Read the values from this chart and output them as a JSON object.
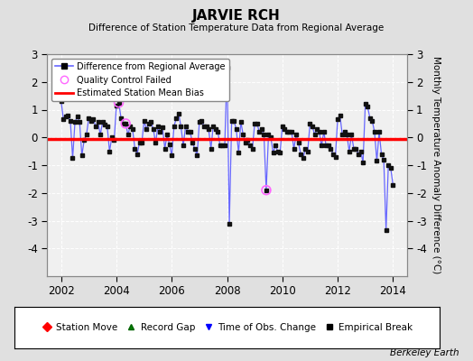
{
  "title": "JARVIE RCH",
  "subtitle": "Difference of Station Temperature Data from Regional Average",
  "ylabel": "Monthly Temperature Anomaly Difference (°C)",
  "xlabel_years": [
    2002,
    2004,
    2006,
    2008,
    2010,
    2012,
    2014
  ],
  "ylim": [
    -5,
    3
  ],
  "yticks": [
    -4,
    -3,
    -2,
    -1,
    0,
    1,
    2,
    3
  ],
  "bias_value": -0.05,
  "line_color": "#6666FF",
  "marker_color": "#111111",
  "bias_color": "#FF0000",
  "qc_color": "#FF66FF",
  "plot_bg_color": "#F0F0F0",
  "fig_bg_color": "#E0E0E0",
  "watermark": "Berkeley Earth",
  "times": [
    2002.0,
    2002.083,
    2002.167,
    2002.25,
    2002.333,
    2002.417,
    2002.5,
    2002.583,
    2002.667,
    2002.75,
    2002.833,
    2002.917,
    2003.0,
    2003.083,
    2003.167,
    2003.25,
    2003.333,
    2003.417,
    2003.5,
    2003.583,
    2003.667,
    2003.75,
    2003.833,
    2003.917,
    2004.0,
    2004.083,
    2004.167,
    2004.25,
    2004.333,
    2004.417,
    2004.5,
    2004.583,
    2004.667,
    2004.75,
    2004.833,
    2004.917,
    2005.0,
    2005.083,
    2005.167,
    2005.25,
    2005.333,
    2005.417,
    2005.5,
    2005.583,
    2005.667,
    2005.75,
    2005.833,
    2005.917,
    2006.0,
    2006.083,
    2006.167,
    2006.25,
    2006.333,
    2006.417,
    2006.5,
    2006.583,
    2006.667,
    2006.75,
    2006.833,
    2006.917,
    2007.0,
    2007.083,
    2007.167,
    2007.25,
    2007.333,
    2007.417,
    2007.5,
    2007.583,
    2007.667,
    2007.75,
    2007.833,
    2007.917,
    2008.0,
    2008.083,
    2008.167,
    2008.25,
    2008.333,
    2008.417,
    2008.5,
    2008.583,
    2008.667,
    2008.75,
    2008.833,
    2008.917,
    2009.0,
    2009.083,
    2009.167,
    2009.25,
    2009.333,
    2009.417,
    2009.5,
    2009.583,
    2009.667,
    2009.75,
    2009.833,
    2009.917,
    2010.0,
    2010.083,
    2010.167,
    2010.25,
    2010.333,
    2010.417,
    2010.5,
    2010.583,
    2010.667,
    2010.75,
    2010.833,
    2010.917,
    2011.0,
    2011.083,
    2011.167,
    2011.25,
    2011.333,
    2011.417,
    2011.5,
    2011.583,
    2011.667,
    2011.75,
    2011.833,
    2011.917,
    2012.0,
    2012.083,
    2012.167,
    2012.25,
    2012.333,
    2012.417,
    2012.5,
    2012.583,
    2012.667,
    2012.75,
    2012.833,
    2012.917,
    2013.0,
    2013.083,
    2013.167,
    2013.25,
    2013.333,
    2013.417,
    2013.5,
    2013.583,
    2013.667,
    2013.75,
    2013.833,
    2013.917,
    2014.0
  ],
  "values": [
    1.3,
    0.65,
    0.75,
    0.8,
    0.6,
    -0.75,
    0.55,
    0.75,
    0.55,
    -0.65,
    -0.1,
    0.1,
    0.7,
    0.6,
    0.65,
    0.4,
    0.55,
    0.1,
    0.55,
    0.45,
    0.4,
    -0.5,
    0.0,
    -0.1,
    1.15,
    1.25,
    0.7,
    0.5,
    0.5,
    0.1,
    0.4,
    0.3,
    -0.4,
    -0.6,
    -0.2,
    -0.2,
    0.6,
    0.3,
    0.5,
    0.55,
    0.3,
    -0.2,
    0.4,
    0.2,
    0.35,
    -0.4,
    0.1,
    -0.25,
    -0.65,
    0.4,
    0.7,
    0.85,
    0.4,
    -0.3,
    0.4,
    0.2,
    0.2,
    -0.2,
    -0.4,
    -0.65,
    0.55,
    0.6,
    0.4,
    0.4,
    0.3,
    -0.4,
    0.4,
    0.3,
    0.2,
    -0.3,
    -0.3,
    -0.3,
    2.5,
    -3.1,
    0.6,
    0.6,
    0.3,
    -0.55,
    0.55,
    0.1,
    -0.2,
    -0.1,
    -0.3,
    -0.4,
    0.5,
    0.5,
    0.2,
    0.3,
    0.1,
    -1.9,
    0.1,
    0.0,
    -0.55,
    -0.3,
    -0.5,
    -0.55,
    0.4,
    0.3,
    0.2,
    0.2,
    0.2,
    -0.4,
    0.1,
    -0.2,
    -0.6,
    -0.75,
    -0.4,
    -0.5,
    0.5,
    0.4,
    0.1,
    0.3,
    0.2,
    -0.3,
    0.2,
    -0.3,
    -0.3,
    -0.4,
    -0.6,
    -0.7,
    0.65,
    0.8,
    0.1,
    0.2,
    0.1,
    -0.5,
    0.1,
    -0.4,
    -0.4,
    -0.6,
    -0.5,
    -0.9,
    1.2,
    1.1,
    0.7,
    0.6,
    0.2,
    -0.85,
    0.2,
    -0.6,
    -0.8,
    -3.35,
    -1.0,
    -1.1,
    -1.7
  ],
  "qc_failed_times": [
    2004.083,
    2004.333,
    2009.417
  ],
  "qc_failed_values": [
    1.25,
    0.5,
    -1.9
  ],
  "xlim": [
    2001.5,
    2014.5
  ]
}
